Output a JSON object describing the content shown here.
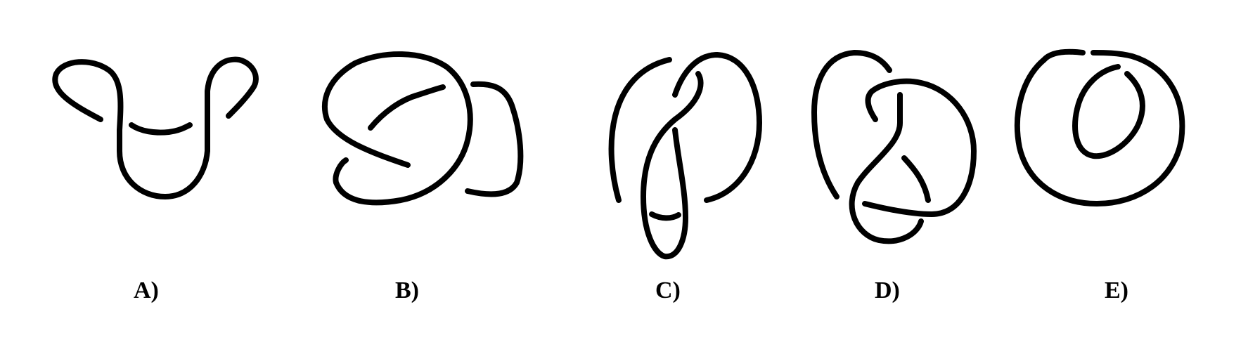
{
  "panels": [
    {
      "id": "A",
      "label": "A)"
    },
    {
      "id": "B",
      "label": "B)"
    },
    {
      "id": "C",
      "label": "C)"
    },
    {
      "id": "D",
      "label": "D)"
    },
    {
      "id": "E",
      "label": "E)"
    }
  ],
  "colors": {
    "background": "#ffffff",
    "ink": "#000000"
  }
}
